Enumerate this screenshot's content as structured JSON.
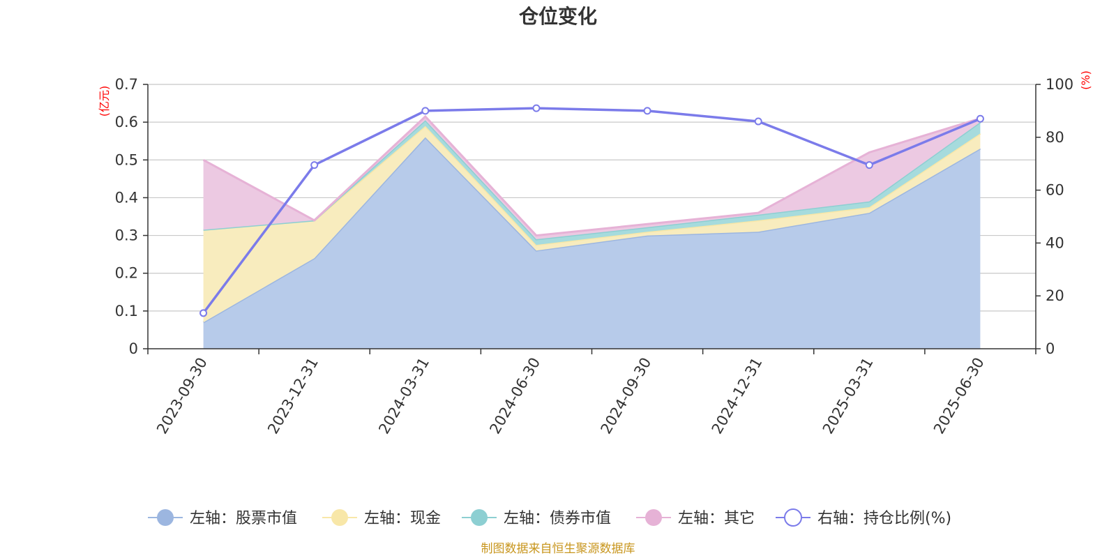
{
  "chart_data": {
    "type": "area",
    "title": "仓位变化",
    "x": [
      "2023-09-30",
      "2023-12-31",
      "2024-03-31",
      "2024-06-30",
      "2024-09-30",
      "2024-12-31",
      "2025-03-31",
      "2025-06-30"
    ],
    "left_axis": {
      "unit": "(亿元)",
      "ylim": [
        0,
        0.7
      ],
      "ticks": [
        "0",
        "0.1",
        "0.2",
        "0.3",
        "0.4",
        "0.5",
        "0.6",
        "0.7"
      ]
    },
    "right_axis": {
      "unit": "(%)",
      "ylim": [
        0,
        100
      ],
      "ticks": [
        "0",
        "20",
        "40",
        "60",
        "80",
        "100"
      ]
    },
    "series": [
      {
        "name": "左轴：股票市值",
        "axis": "left",
        "stacked": true,
        "color": "#9cb6e0",
        "fill": "#b7cbea",
        "values": [
          0.07,
          0.24,
          0.56,
          0.26,
          0.3,
          0.31,
          0.36,
          0.53
        ]
      },
      {
        "name": "左轴：现金",
        "axis": "left",
        "stacked": true,
        "color": "#f8e7a8",
        "fill": "#f8ecbe",
        "values": [
          0.245,
          0.1,
          0.03,
          0.015,
          0.01,
          0.03,
          0.015,
          0.04
        ]
      },
      {
        "name": "左轴：债券市值",
        "axis": "left",
        "stacked": true,
        "color": "#8dcfd2",
        "fill": "#a6dbdd",
        "values": [
          0.0,
          0.0,
          0.015,
          0.015,
          0.012,
          0.015,
          0.015,
          0.03
        ]
      },
      {
        "name": "左轴：其它",
        "axis": "left",
        "stacked": true,
        "color": "#e6b2d6",
        "fill": "#ecc9e2",
        "values": [
          0.185,
          0.0,
          0.01,
          0.01,
          0.008,
          0.005,
          0.13,
          0.01
        ]
      },
      {
        "name": "右轴：持仓比例(%)",
        "axis": "right",
        "type": "line",
        "color": "#7b7bea",
        "values": [
          13.5,
          69.5,
          90,
          91,
          90,
          86,
          69.5,
          87
        ]
      }
    ],
    "grid": true,
    "legend": "bottom"
  },
  "footer": {
    "source": "制图数据来自恒生聚源数据库"
  }
}
